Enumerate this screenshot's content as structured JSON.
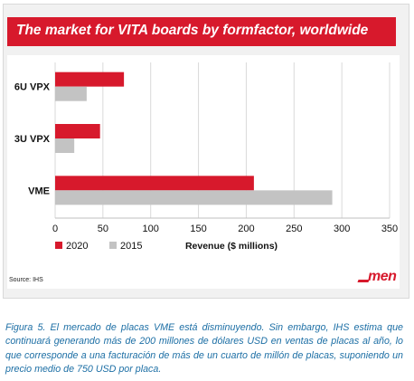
{
  "figure": {
    "title": "The market for VITA boards by formfactor, worldwide",
    "source": "Source: IHS",
    "logo": "men"
  },
  "caption": "Figura 5. El mercado de placas VME está disminuyendo. Sin embargo, IHS estima que continuará generando más de 200 millones de dólares USD en ventas de placas al año, lo que corresponde a una facturación de más de un cuarto de millón de placas, suponiendo un precio medio de 750 USD por placa.",
  "chart_data": {
    "type": "bar",
    "orientation": "horizontal",
    "title": "The market for VITA boards by formfactor, worldwide",
    "categories": [
      "6U VPX",
      "3U VPX",
      "VME"
    ],
    "series": [
      {
        "name": "2020",
        "values": [
          72,
          47,
          208
        ],
        "color": "#d7192c"
      },
      {
        "name": "2015",
        "values": [
          33,
          20,
          290
        ],
        "color": "#c3c3c3"
      }
    ],
    "xlabel": "Revenue ($ millions)",
    "ylabel": "",
    "xlim": [
      0,
      350
    ],
    "xticks": [
      "0",
      "50",
      "100",
      "150",
      "200",
      "250",
      "300",
      "350"
    ],
    "grid": true,
    "legend": "bottom-left"
  }
}
